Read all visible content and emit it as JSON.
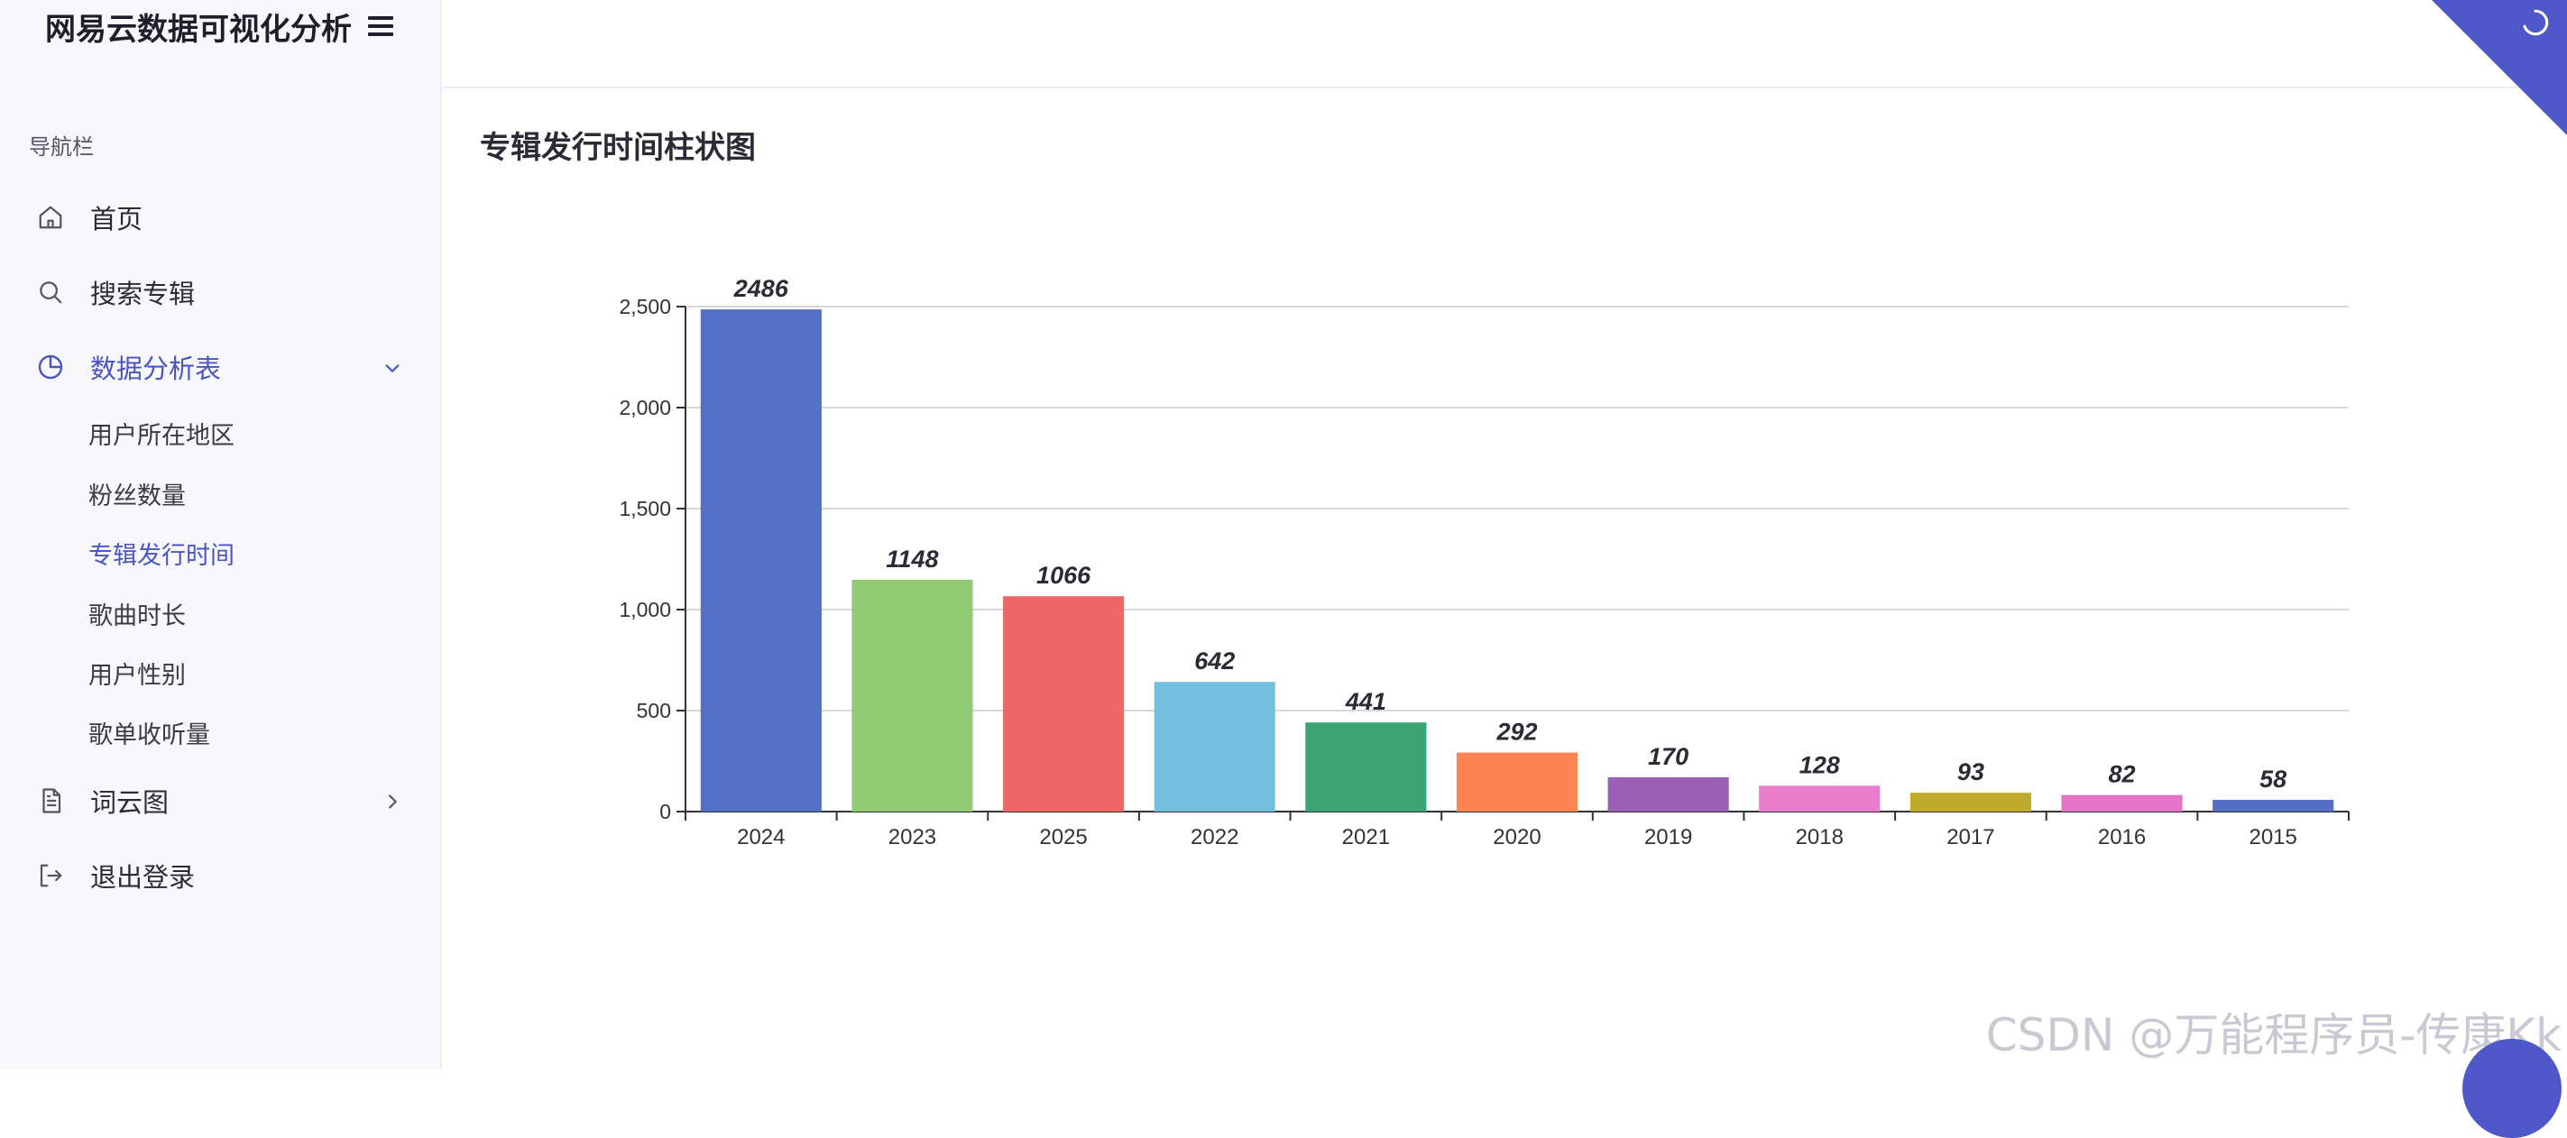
{
  "app": {
    "title": "网易云数据可视化分析"
  },
  "sidebar": {
    "caption": "导航栏",
    "items": [
      {
        "label": "首页",
        "icon": "home-icon"
      },
      {
        "label": "搜索专辑",
        "icon": "search-icon"
      },
      {
        "label": "数据分析表",
        "icon": "pie-chart-icon",
        "expanded": true
      },
      {
        "label": "词云图",
        "icon": "document-icon"
      },
      {
        "label": "退出登录",
        "icon": "logout-icon"
      }
    ],
    "sub_items": [
      {
        "label": "用户所在地区"
      },
      {
        "label": "粉丝数量"
      },
      {
        "label": "专辑发行时间",
        "active": true
      },
      {
        "label": "歌曲时长"
      },
      {
        "label": "用户性别"
      },
      {
        "label": "歌单收听量"
      }
    ]
  },
  "main": {
    "title": "专辑发行时间柱状图"
  },
  "watermark": "CSDN @万能程序员-传康Kk",
  "colors": {
    "accent": "#4a55c4",
    "bars": [
      "#5470c6",
      "#91cc75",
      "#ee6666",
      "#73c0de",
      "#3ba272",
      "#fc8452",
      "#9a60b4",
      "#ea7ccc",
      "#c0aa2a",
      "#e374c8",
      "#5470c6"
    ]
  },
  "chart_data": {
    "type": "bar",
    "title": "专辑发行时间柱状图",
    "categories": [
      "2024",
      "2023",
      "2025",
      "2022",
      "2021",
      "2020",
      "2019",
      "2018",
      "2017",
      "2016",
      "2015"
    ],
    "values": [
      2486,
      1148,
      1066,
      642,
      441,
      292,
      170,
      128,
      93,
      82,
      58
    ],
    "ylim": [
      0,
      2500
    ],
    "yticks": [
      0,
      500,
      1000,
      1500,
      2000,
      2500
    ],
    "ytick_labels": [
      "0",
      "500",
      "1,000",
      "1,500",
      "2,000",
      "2,500"
    ],
    "xlabel": "",
    "ylabel": "",
    "grid": true
  }
}
